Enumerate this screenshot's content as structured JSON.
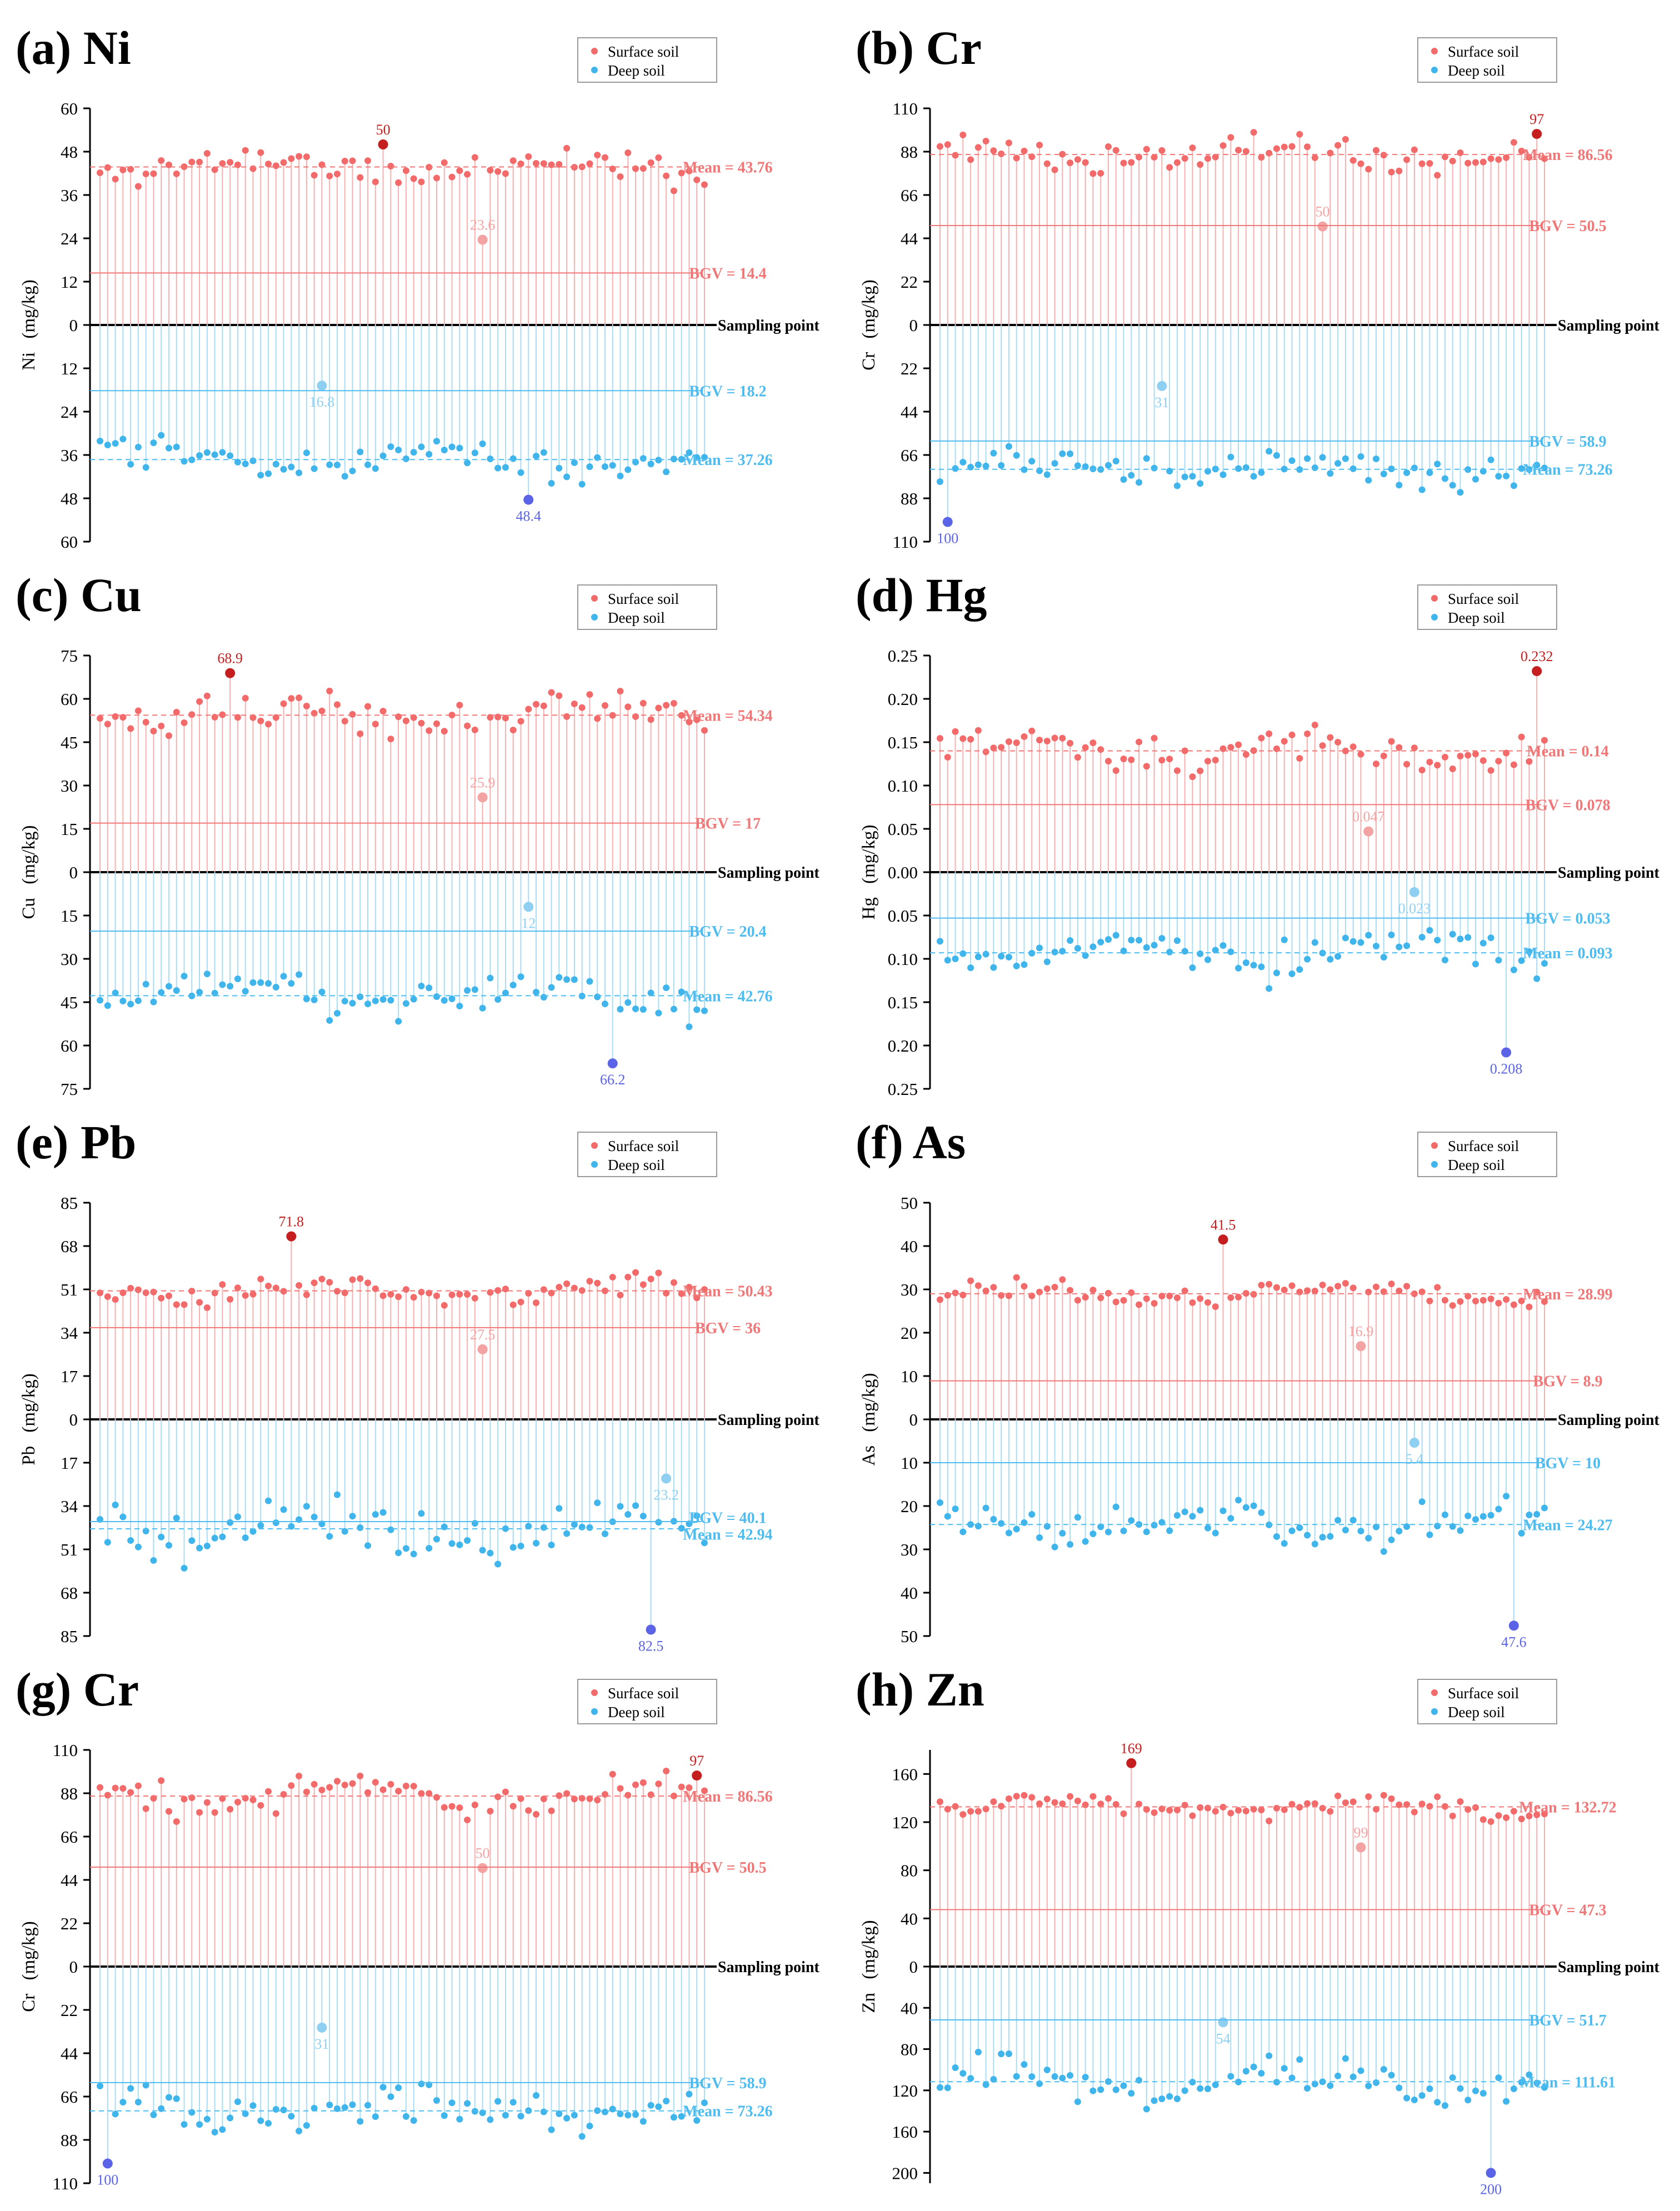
{
  "figure": {
    "legend": {
      "surface": "Surface soil",
      "deep": "Deep soil"
    },
    "axis_x_label": "Sampling point",
    "y_unit": "(mg/kg)"
  },
  "colors": {
    "surface": "#f26a6a",
    "surface_extreme": "#c41e1e",
    "surface_light": "#f4a3a3",
    "deep": "#3fb5ec",
    "deep_extreme": "#5b63e6",
    "deep_light": "#8fd0f2"
  },
  "chart_data": [
    {
      "panel": "(a) Ni",
      "element": "Ni",
      "type": "stem",
      "xlabel": "Sampling point",
      "ylabel": "Ni (mg/kg)",
      "ylim_top": 60,
      "ylim_bottom": 60,
      "ticks_top": [
        "60",
        "48",
        "36",
        "24",
        "12",
        "0"
      ],
      "ticks_bottom": [
        "12",
        "24",
        "36",
        "48",
        "60"
      ],
      "surface": {
        "n": 80,
        "mean": 43.76,
        "bgv": 14.4,
        "mean_label": "Mean = 43.76",
        "bgv_label": "BGV = 14.4",
        "max": {
          "index": 37,
          "value": 50,
          "label": "50"
        },
        "min": {
          "index": 50,
          "value": 23.6,
          "label": "23.6"
        }
      },
      "deep": {
        "n": 80,
        "mean": 37.26,
        "bgv": 18.2,
        "mean_label": "Mean = 37.26",
        "bgv_label": "BGV = 18.2",
        "max": {
          "index": 56,
          "value": 48.4,
          "label": "48.4"
        },
        "min": {
          "index": 29,
          "value": 16.8,
          "label": "16.8"
        }
      },
      "bgv_first": "surface"
    },
    {
      "panel": "(b) Cr",
      "element": "Cr",
      "type": "stem",
      "xlabel": "Sampling point",
      "ylabel": "Cr (mg/kg)",
      "ylim_top": 110,
      "ylim_bottom": 110,
      "ticks_top": [
        "110",
        "88",
        "66",
        "44",
        "22",
        "0"
      ],
      "ticks_bottom": [
        "22",
        "44",
        "66",
        "88",
        "110"
      ],
      "surface": {
        "n": 80,
        "mean": 86.56,
        "bgv": 50.5,
        "mean_label": "Mean = 86.56",
        "bgv_label": "BGV = 50.5",
        "max": {
          "index": 78,
          "value": 97,
          "label": "97"
        },
        "min": {
          "index": 50,
          "value": 50,
          "label": "50"
        }
      },
      "deep": {
        "n": 80,
        "mean": 73.26,
        "bgv": 58.9,
        "mean_label": "Mean = 73.26",
        "bgv_label": "BGV = 58.9",
        "max": {
          "index": 1,
          "value": 100,
          "label": "100"
        },
        "min": {
          "index": 29,
          "value": 31,
          "label": "31"
        }
      },
      "bgv_first": "surface"
    },
    {
      "panel": "(c) Cu",
      "element": "Cu",
      "type": "stem",
      "xlabel": "Sampling point",
      "ylabel": "Cu (mg/kg)",
      "ylim_top": 75,
      "ylim_bottom": 75,
      "ticks_top": [
        "75",
        "60",
        "45",
        "30",
        "15",
        "0"
      ],
      "ticks_bottom": [
        "15",
        "30",
        "45",
        "60",
        "75"
      ],
      "surface": {
        "n": 80,
        "mean": 54.34,
        "bgv": 17,
        "mean_label": "Mean = 54.34",
        "bgv_label": "BGV = 17",
        "max": {
          "index": 17,
          "value": 68.9,
          "label": "68.9"
        },
        "min": {
          "index": 50,
          "value": 25.9,
          "label": "25.9"
        }
      },
      "deep": {
        "n": 80,
        "mean": 42.76,
        "bgv": 20.4,
        "mean_label": "Mean = 42.76",
        "bgv_label": "BGV = 20.4",
        "max": {
          "index": 67,
          "value": 66.2,
          "label": "66.2"
        },
        "min": {
          "index": 56,
          "value": 12,
          "label": "12"
        }
      },
      "bgv_first": "surface"
    },
    {
      "panel": "(d) Hg",
      "element": "Hg",
      "type": "stem",
      "xlabel": "Sampling point",
      "ylabel": "Hg (mg/kg)",
      "ylim_top": 0.25,
      "ylim_bottom": 0.25,
      "ticks_top": [
        "0.25",
        "0.20",
        "0.15",
        "0.10",
        "0.05",
        "0.00"
      ],
      "ticks_bottom": [
        "0.05",
        "0.10",
        "0.15",
        "0.20",
        "0.25"
      ],
      "surface": {
        "n": 80,
        "mean": 0.14,
        "bgv": 0.078,
        "mean_label": "Mean = 0.14",
        "bgv_label": "BGV = 0.078",
        "max": {
          "index": 78,
          "value": 0.232,
          "label": "0.232"
        },
        "min": {
          "index": 56,
          "value": 0.047,
          "label": "0.047"
        }
      },
      "deep": {
        "n": 80,
        "mean": 0.093,
        "bgv": 0.053,
        "mean_label": "Mean = 0.093",
        "bgv_label": "BGV = 0.053",
        "max": {
          "index": 74,
          "value": 0.208,
          "label": "0.208"
        },
        "min": {
          "index": 62,
          "value": 0.023,
          "label": "0.023"
        }
      },
      "bgv_first": "surface"
    },
    {
      "panel": "(e) Pb",
      "element": "Pb",
      "type": "stem",
      "xlabel": "Sampling point",
      "ylabel": "Pb (mg/kg)",
      "ylim_top": 85,
      "ylim_bottom": 85,
      "ticks_top": [
        "85",
        "68",
        "51",
        "34",
        "17",
        "0"
      ],
      "ticks_bottom": [
        "17",
        "34",
        "51",
        "68",
        "85"
      ],
      "surface": {
        "n": 80,
        "mean": 50.43,
        "bgv": 36,
        "mean_label": "Mean = 50.43",
        "bgv_label": "BGV = 36",
        "max": {
          "index": 25,
          "value": 71.8,
          "label": "71.8"
        },
        "min": {
          "index": 50,
          "value": 27.5,
          "label": "27.5"
        }
      },
      "deep": {
        "n": 80,
        "mean": 42.94,
        "bgv": 40.1,
        "mean_label": "Mean = 42.94",
        "bgv_label": "BGV = 40.1",
        "max": {
          "index": 72,
          "value": 82.5,
          "label": "82.5"
        },
        "min": {
          "index": 74,
          "value": 23.2,
          "label": "23.2"
        }
      },
      "bgv_first": "deep"
    },
    {
      "panel": "(f) As",
      "element": "As",
      "type": "stem",
      "xlabel": "Sampling point",
      "ylabel": "As (mg/kg)",
      "ylim_top": 50,
      "ylim_bottom": 50,
      "ticks_top": [
        "50",
        "40",
        "30",
        "20",
        "10",
        "0"
      ],
      "ticks_bottom": [
        "10",
        "20",
        "30",
        "40",
        "50"
      ],
      "surface": {
        "n": 80,
        "mean": 28.99,
        "bgv": 8.9,
        "mean_label": "Mean = 28.99",
        "bgv_label": "BGV = 8.9",
        "max": {
          "index": 37,
          "value": 41.5,
          "label": "41.5"
        },
        "min": {
          "index": 55,
          "value": 16.9,
          "label": "16.9"
        }
      },
      "deep": {
        "n": 80,
        "mean": 24.27,
        "bgv": 10,
        "mean_label": "Mean = 24.27",
        "bgv_label": "BGV = 10",
        "max": {
          "index": 75,
          "value": 47.6,
          "label": "47.6"
        },
        "min": {
          "index": 62,
          "value": 5.4,
          "label": "5.4"
        }
      },
      "bgv_first": "deep"
    },
    {
      "panel": "(g) Cr",
      "element": "Cr",
      "type": "stem",
      "xlabel": "Sampling point",
      "ylabel": "Cr (mg/kg)",
      "ylim_top": 110,
      "ylim_bottom": 110,
      "ticks_top": [
        "110",
        "88",
        "66",
        "44",
        "22",
        "0"
      ],
      "ticks_bottom": [
        "22",
        "44",
        "66",
        "88",
        "110"
      ],
      "surface": {
        "n": 80,
        "mean": 86.56,
        "bgv": 50.5,
        "mean_label": "Mean = 86.56",
        "bgv_label": "BGV = 50.5",
        "max": {
          "index": 78,
          "value": 97,
          "label": "97"
        },
        "min": {
          "index": 50,
          "value": 50,
          "label": "50"
        }
      },
      "deep": {
        "n": 80,
        "mean": 73.26,
        "bgv": 58.9,
        "mean_label": "Mean = 73.26",
        "bgv_label": "BGV = 58.9",
        "max": {
          "index": 1,
          "value": 100,
          "label": "100"
        },
        "min": {
          "index": 29,
          "value": 31,
          "label": "31"
        }
      },
      "bgv_first": "surface"
    },
    {
      "panel": "(h) Zn",
      "element": "Zn",
      "type": "stem",
      "xlabel": "Sampling point",
      "ylabel": "Zn (mg/kg)",
      "ylim_top": 180,
      "ylim_bottom": 210,
      "ticks_top": [
        "160",
        "120",
        "80",
        "40",
        "0"
      ],
      "ticks_bottom": [
        "40",
        "80",
        "120",
        "160",
        "200"
      ],
      "surface": {
        "n": 80,
        "mean": 132.72,
        "bgv": 47.3,
        "mean_label": "Mean = 132.72",
        "bgv_label": "BGV = 47.3",
        "max": {
          "index": 25,
          "value": 169,
          "label": "169"
        },
        "min": {
          "index": 55,
          "value": 99,
          "label": "99"
        }
      },
      "deep": {
        "n": 80,
        "mean": 111.61,
        "bgv": 51.7,
        "mean_label": "Mean = 111.61",
        "bgv_label": "BGV = 51.7",
        "max": {
          "index": 72,
          "value": 200,
          "label": "200"
        },
        "min": {
          "index": 37,
          "value": 54,
          "label": "54"
        }
      },
      "bgv_first": "surface"
    }
  ]
}
